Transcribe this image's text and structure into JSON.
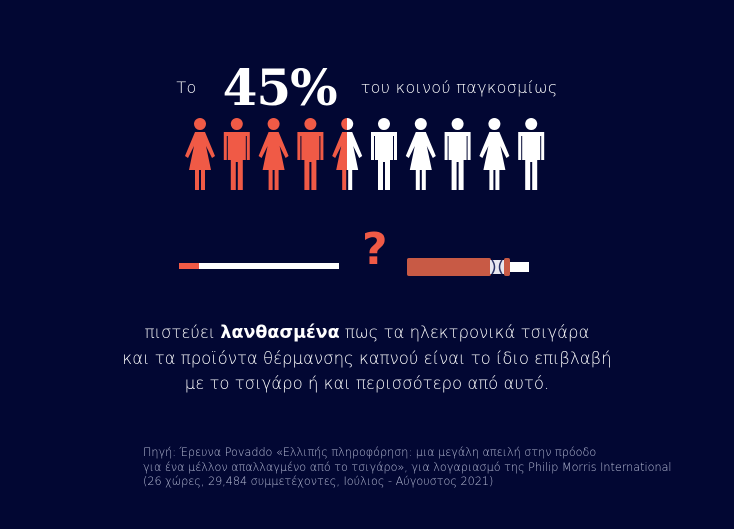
{
  "headline": {
    "prefix": "Το",
    "percent": "45%",
    "suffix": "του κοινού παγκοσμίως"
  },
  "pictogram": {
    "total": 10,
    "filled": 4.5,
    "figures": [
      "female",
      "male",
      "female",
      "male",
      "female",
      "male",
      "female",
      "male",
      "female",
      "male"
    ]
  },
  "comparison": {
    "left_icon": "cigarette-icon",
    "middle": "?",
    "right_icon": "heated-tobacco-device-icon"
  },
  "statement": {
    "line1_before": "πιστεύει ",
    "line1_bold": "λανθασμένα",
    "line1_after": " πως τα ηλεκτρονικά τσιγάρα",
    "line2": "και τα προϊόντα θέρμανσης καπνού είναι το ίδιο επιβλαβή",
    "line3": "με το τσιγάρο ή και περισσότερο από αυτό."
  },
  "source": {
    "line1": "Πηγή: Έρευνα Povaddo «Ελλιπής πληροφόρηση: μια μεγάλη απειλή στην πρόοδο",
    "line2": "για ένα μέλλον απαλλαγμένο από το τσιγάρο», για λογαριασμό της Philip Morris International",
    "line3": "(26 χώρες, 29,484 συμμετέχοντες, Ιούλιος - Αύγουστος 2021)"
  },
  "colors": {
    "background": "#020733",
    "accent": "#f05a46",
    "device": "#c85a45",
    "text": "#ffffff"
  }
}
